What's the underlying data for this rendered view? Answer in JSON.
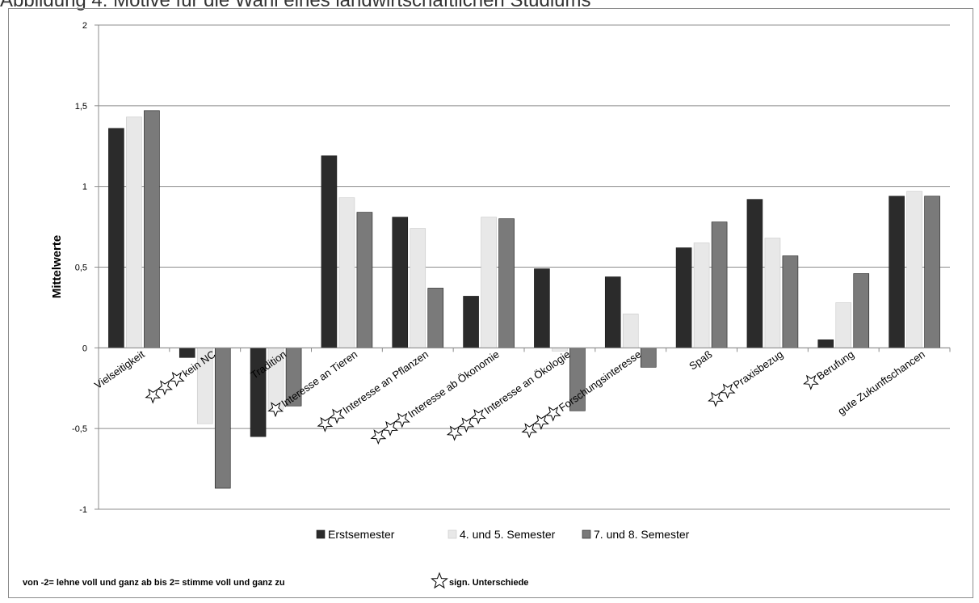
{
  "title": "Abbildung 4: Motive für die Wahl eines landwirtschaftlichen Studiums",
  "chart_data": {
    "type": "bar",
    "ylabel": "Mittelwerte",
    "ylim": [
      -1,
      2
    ],
    "yticks": [
      2,
      1.5,
      1,
      0.5,
      0,
      -0.5,
      -1
    ],
    "ytick_labels": [
      "2",
      "1,5",
      "1",
      "0,5",
      "0",
      "-0,5",
      "-1"
    ],
    "grid": true,
    "legend_position": "bottom",
    "categories": [
      "Vielseitigkeit",
      "kein NC",
      "Tradition",
      "Interesse an Tieren",
      "Interesse an Pflanzen",
      "Interesse ab Ökonomie",
      "Interesse an Ökologie",
      "Forschungsinteresse",
      "Spaß",
      "Praxisbezug",
      "Berufung",
      "gute Zukunftschancen"
    ],
    "significance_stars": [
      0,
      3,
      0,
      1,
      2,
      3,
      3,
      3,
      0,
      2,
      1,
      0
    ],
    "series": [
      {
        "name": "Erstsemester",
        "color": "#2b2b2b",
        "values": [
          1.36,
          -0.06,
          -0.55,
          1.19,
          0.81,
          0.32,
          0.49,
          0.44,
          0.62,
          0.92,
          0.05,
          0.94
        ]
      },
      {
        "name": "4. und 5. Semester",
        "color": "#e8e8e8",
        "values": [
          1.43,
          -0.47,
          -0.38,
          0.93,
          0.74,
          0.81,
          -0.02,
          0.21,
          0.65,
          0.68,
          0.28,
          0.97
        ]
      },
      {
        "name": "7. und 8. Semester",
        "color": "#7a7a7a",
        "values": [
          1.47,
          -0.87,
          -0.36,
          0.84,
          0.37,
          0.8,
          -0.39,
          -0.12,
          0.78,
          0.57,
          0.46,
          0.94
        ]
      }
    ]
  },
  "footnote": {
    "scale_text": "von -2= lehne voll und ganz ab bis 2= stimme voll und ganz zu",
    "star_text": "sign. Unterschiede"
  }
}
